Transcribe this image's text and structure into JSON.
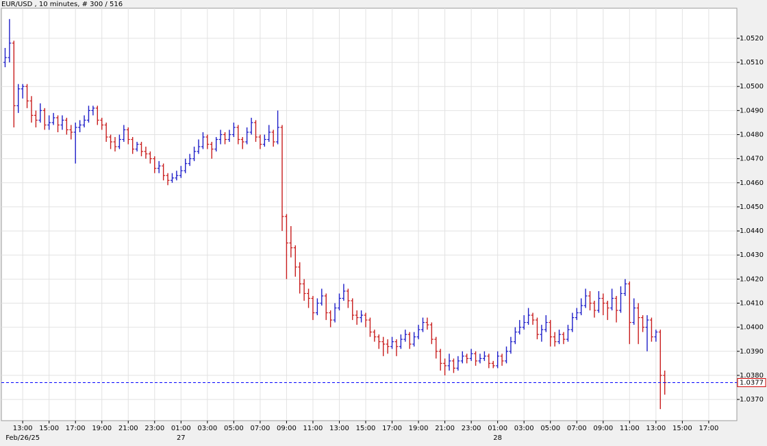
{
  "chart_data": {
    "type": "ohlc",
    "title": "EUR/USD , 10 minutes, # 300 / 516",
    "up_color": "#1c1cc8",
    "down_color": "#c81c1c",
    "grid": true,
    "current_price": 1.0377,
    "current_price_color": "#0000ff",
    "xlim": [
      683,
      4028
    ],
    "ylim": [
      1.03612,
      1.05325
    ],
    "yticks": [
      {
        "value": 1.037,
        "label": "1.0370"
      },
      {
        "value": 1.038,
        "label": "1.0380"
      },
      {
        "value": 1.039,
        "label": "1.0390"
      },
      {
        "value": 1.04,
        "label": "1.0400"
      },
      {
        "value": 1.041,
        "label": "1.0410"
      },
      {
        "value": 1.042,
        "label": "1.0420"
      },
      {
        "value": 1.043,
        "label": "1.0430"
      },
      {
        "value": 1.044,
        "label": "1.0440"
      },
      {
        "value": 1.045,
        "label": "1.0450"
      },
      {
        "value": 1.046,
        "label": "1.0460"
      },
      {
        "value": 1.047,
        "label": "1.0470"
      },
      {
        "value": 1.048,
        "label": "1.0480"
      },
      {
        "value": 1.049,
        "label": "1.0490"
      },
      {
        "value": 1.05,
        "label": "1.0500"
      },
      {
        "value": 1.051,
        "label": "1.0510"
      },
      {
        "value": 1.052,
        "label": "1.0520"
      }
    ],
    "xticks": [
      {
        "value": 780,
        "label": "13:00"
      },
      {
        "value": 900,
        "label": "15:00"
      },
      {
        "value": 1020,
        "label": "17:00"
      },
      {
        "value": 1140,
        "label": "19:00"
      },
      {
        "value": 1260,
        "label": "21:00"
      },
      {
        "value": 1380,
        "label": "23:00"
      },
      {
        "value": 1500,
        "label": "01:00"
      },
      {
        "value": 1620,
        "label": "03:00"
      },
      {
        "value": 1740,
        "label": "05:00"
      },
      {
        "value": 1860,
        "label": "07:00"
      },
      {
        "value": 1980,
        "label": "09:00"
      },
      {
        "value": 2100,
        "label": "11:00"
      },
      {
        "value": 2220,
        "label": "13:00"
      },
      {
        "value": 2340,
        "label": "15:00"
      },
      {
        "value": 2460,
        "label": "17:00"
      },
      {
        "value": 2580,
        "label": "19:00"
      },
      {
        "value": 2700,
        "label": "21:00"
      },
      {
        "value": 2820,
        "label": "23:00"
      },
      {
        "value": 2940,
        "label": "01:00"
      },
      {
        "value": 3060,
        "label": "03:00"
      },
      {
        "value": 3180,
        "label": "05:00"
      },
      {
        "value": 3300,
        "label": "07:00"
      },
      {
        "value": 3420,
        "label": "09:00"
      },
      {
        "value": 3540,
        "label": "11:00"
      },
      {
        "value": 3660,
        "label": "13:00"
      },
      {
        "value": 3780,
        "label": "15:00"
      },
      {
        "value": 3900,
        "label": "17:00"
      }
    ],
    "date_labels": [
      {
        "value": 780,
        "label": "Feb/26/25"
      },
      {
        "value": 1500,
        "label": "27"
      },
      {
        "value": 2940,
        "label": "28"
      }
    ],
    "x": [
      700,
      720,
      740,
      760,
      780,
      800,
      820,
      840,
      860,
      880,
      900,
      920,
      940,
      960,
      980,
      1000,
      1020,
      1040,
      1060,
      1080,
      1100,
      1120,
      1140,
      1160,
      1180,
      1200,
      1220,
      1240,
      1260,
      1280,
      1300,
      1320,
      1340,
      1360,
      1380,
      1400,
      1420,
      1440,
      1460,
      1480,
      1500,
      1520,
      1540,
      1560,
      1580,
      1600,
      1620,
      1640,
      1660,
      1680,
      1700,
      1720,
      1740,
      1760,
      1780,
      1800,
      1820,
      1840,
      1860,
      1880,
      1900,
      1920,
      1940,
      1960,
      1980,
      2000,
      2020,
      2040,
      2060,
      2080,
      2100,
      2120,
      2140,
      2160,
      2180,
      2200,
      2220,
      2240,
      2260,
      2280,
      2300,
      2320,
      2340,
      2360,
      2380,
      2400,
      2420,
      2440,
      2460,
      2480,
      2500,
      2520,
      2540,
      2560,
      2580,
      2600,
      2620,
      2640,
      2660,
      2680,
      2700,
      2720,
      2740,
      2760,
      2780,
      2800,
      2820,
      2840,
      2860,
      2880,
      2900,
      2920,
      2940,
      2960,
      2980,
      3000,
      3020,
      3040,
      3060,
      3080,
      3100,
      3120,
      3140,
      3160,
      3180,
      3200,
      3220,
      3240,
      3260,
      3280,
      3300,
      3320,
      3340,
      3360,
      3380,
      3400,
      3420,
      3440,
      3460,
      3480,
      3500,
      3520,
      3540,
      3560,
      3580,
      3600,
      3620,
      3640,
      3660,
      3680,
      3700
    ],
    "ohlc": [
      [
        1.051,
        1.0516,
        1.0508,
        1.0512
      ],
      [
        1.0512,
        1.0528,
        1.051,
        1.0518
      ],
      [
        1.0518,
        1.0519,
        1.0483,
        1.0492
      ],
      [
        1.0492,
        1.0501,
        1.0489,
        1.0499
      ],
      [
        1.0499,
        1.0501,
        1.0495,
        1.05
      ],
      [
        1.05,
        1.0501,
        1.0491,
        1.0494
      ],
      [
        1.0494,
        1.0496,
        1.0485,
        1.0488
      ],
      [
        1.0488,
        1.049,
        1.0483,
        1.0486
      ],
      [
        1.0486,
        1.0493,
        1.0485,
        1.049
      ],
      [
        1.049,
        1.0491,
        1.0482,
        1.0484
      ],
      [
        1.0484,
        1.0488,
        1.0482,
        1.0485
      ],
      [
        1.0485,
        1.0489,
        1.0484,
        1.0487
      ],
      [
        1.0487,
        1.0488,
        1.0481,
        1.0484
      ],
      [
        1.0484,
        1.0488,
        1.0482,
        1.0486
      ],
      [
        1.0486,
        1.0487,
        1.048,
        1.0482
      ],
      [
        1.0482,
        1.0484,
        1.0478,
        1.0481
      ],
      [
        1.0481,
        1.0485,
        1.0468,
        1.0483
      ],
      [
        1.0483,
        1.0486,
        1.0481,
        1.0484
      ],
      [
        1.0484,
        1.0488,
        1.0483,
        1.0486
      ],
      [
        1.0486,
        1.0492,
        1.0485,
        1.049
      ],
      [
        1.049,
        1.0492,
        1.0488,
        1.0491
      ],
      [
        1.0491,
        1.0492,
        1.0484,
        1.0486
      ],
      [
        1.0486,
        1.0487,
        1.0482,
        1.0484
      ],
      [
        1.0484,
        1.0485,
        1.0477,
        1.0479
      ],
      [
        1.0479,
        1.048,
        1.0474,
        1.0477
      ],
      [
        1.0477,
        1.0479,
        1.0473,
        1.0475
      ],
      [
        1.0475,
        1.048,
        1.0474,
        1.0478
      ],
      [
        1.0478,
        1.0484,
        1.0477,
        1.0482
      ],
      [
        1.0482,
        1.0483,
        1.0476,
        1.0478
      ],
      [
        1.0478,
        1.0479,
        1.0472,
        1.0474
      ],
      [
        1.0474,
        1.0477,
        1.0473,
        1.0476
      ],
      [
        1.0476,
        1.0477,
        1.0471,
        1.0473
      ],
      [
        1.0473,
        1.0475,
        1.047,
        1.0472
      ],
      [
        1.0472,
        1.0473,
        1.0468,
        1.047
      ],
      [
        1.047,
        1.0471,
        1.0464,
        1.0466
      ],
      [
        1.0466,
        1.0469,
        1.0464,
        1.0467
      ],
      [
        1.0467,
        1.0468,
        1.0461,
        1.0463
      ],
      [
        1.0463,
        1.0464,
        1.0459,
        1.0461
      ],
      [
        1.0461,
        1.0464,
        1.046,
        1.0462
      ],
      [
        1.0462,
        1.0465,
        1.0461,
        1.0463
      ],
      [
        1.0463,
        1.0467,
        1.0462,
        1.0465
      ],
      [
        1.0465,
        1.047,
        1.0464,
        1.0468
      ],
      [
        1.0468,
        1.0472,
        1.0467,
        1.047
      ],
      [
        1.047,
        1.0475,
        1.0469,
        1.0473
      ],
      [
        1.0473,
        1.0478,
        1.0472,
        1.0475
      ],
      [
        1.0475,
        1.0481,
        1.0474,
        1.0479
      ],
      [
        1.0479,
        1.048,
        1.0474,
        1.0476
      ],
      [
        1.0476,
        1.0477,
        1.047,
        1.0474
      ],
      [
        1.0474,
        1.0479,
        1.0473,
        1.0478
      ],
      [
        1.0478,
        1.0482,
        1.0476,
        1.048
      ],
      [
        1.048,
        1.0481,
        1.0476,
        1.0478
      ],
      [
        1.0478,
        1.0482,
        1.0477,
        1.048
      ],
      [
        1.048,
        1.0485,
        1.0479,
        1.0483
      ],
      [
        1.0483,
        1.0484,
        1.0476,
        1.0478
      ],
      [
        1.0478,
        1.0479,
        1.0474,
        1.0477
      ],
      [
        1.0477,
        1.0483,
        1.0476,
        1.0481
      ],
      [
        1.0481,
        1.0487,
        1.048,
        1.0485
      ],
      [
        1.0485,
        1.0486,
        1.0477,
        1.0479
      ],
      [
        1.0479,
        1.048,
        1.0474,
        1.0476
      ],
      [
        1.0476,
        1.048,
        1.0475,
        1.0478
      ],
      [
        1.0478,
        1.0484,
        1.0477,
        1.0481
      ],
      [
        1.0481,
        1.0482,
        1.0475,
        1.0477
      ],
      [
        1.0477,
        1.049,
        1.0476,
        1.0483
      ],
      [
        1.0483,
        1.0484,
        1.044,
        1.0446
      ],
      [
        1.0446,
        1.0447,
        1.042,
        1.0435
      ],
      [
        1.0435,
        1.0442,
        1.0429,
        1.0433
      ],
      [
        1.0433,
        1.0434,
        1.0421,
        1.0425
      ],
      [
        1.0425,
        1.0427,
        1.0414,
        1.0418
      ],
      [
        1.0418,
        1.042,
        1.0411,
        1.0414
      ],
      [
        1.0414,
        1.0416,
        1.0408,
        1.0412
      ],
      [
        1.0412,
        1.0413,
        1.0403,
        1.0406
      ],
      [
        1.0406,
        1.0412,
        1.0405,
        1.041
      ],
      [
        1.041,
        1.0416,
        1.0409,
        1.0413
      ],
      [
        1.0413,
        1.0414,
        1.0403,
        1.0406
      ],
      [
        1.0406,
        1.0407,
        1.04,
        1.0403
      ],
      [
        1.0403,
        1.041,
        1.0402,
        1.0408
      ],
      [
        1.0408,
        1.0414,
        1.0407,
        1.0412
      ],
      [
        1.0412,
        1.0418,
        1.0411,
        1.0415
      ],
      [
        1.0415,
        1.0416,
        1.0408,
        1.0411
      ],
      [
        1.0411,
        1.0412,
        1.0403,
        1.0405
      ],
      [
        1.0405,
        1.0407,
        1.0401,
        1.0404
      ],
      [
        1.0404,
        1.0407,
        1.0402,
        1.0405
      ],
      [
        1.0405,
        1.0406,
        1.04,
        1.0403
      ],
      [
        1.0403,
        1.0404,
        1.0396,
        1.0398
      ],
      [
        1.0398,
        1.0399,
        1.0394,
        1.0396
      ],
      [
        1.0396,
        1.0397,
        1.0391,
        1.0394
      ],
      [
        1.0394,
        1.0396,
        1.0388,
        1.0393
      ],
      [
        1.0393,
        1.0395,
        1.0389,
        1.0392
      ],
      [
        1.0392,
        1.0396,
        1.0391,
        1.0394
      ],
      [
        1.0394,
        1.0395,
        1.0388,
        1.0392
      ],
      [
        1.0392,
        1.0397,
        1.0391,
        1.0395
      ],
      [
        1.0395,
        1.0399,
        1.0394,
        1.0397
      ],
      [
        1.0397,
        1.0398,
        1.0391,
        1.0393
      ],
      [
        1.0393,
        1.0398,
        1.0392,
        1.0396
      ],
      [
        1.0396,
        1.0401,
        1.0395,
        1.0399
      ],
      [
        1.0399,
        1.0404,
        1.0398,
        1.0402
      ],
      [
        1.0402,
        1.0404,
        1.0399,
        1.0401
      ],
      [
        1.0401,
        1.0402,
        1.0393,
        1.0395
      ],
      [
        1.0395,
        1.0396,
        1.0387,
        1.039
      ],
      [
        1.039,
        1.0391,
        1.0382,
        1.0385
      ],
      [
        1.0385,
        1.0387,
        1.038,
        1.0384
      ],
      [
        1.0384,
        1.0389,
        1.0382,
        1.0386
      ],
      [
        1.0386,
        1.0387,
        1.0381,
        1.0383
      ],
      [
        1.0383,
        1.0388,
        1.0382,
        1.0386
      ],
      [
        1.0386,
        1.039,
        1.0385,
        1.0388
      ],
      [
        1.0388,
        1.0389,
        1.0385,
        1.0387
      ],
      [
        1.0387,
        1.0391,
        1.0386,
        1.0389
      ],
      [
        1.0389,
        1.039,
        1.0384,
        1.0386
      ],
      [
        1.0386,
        1.0389,
        1.0385,
        1.0387
      ],
      [
        1.0387,
        1.039,
        1.0386,
        1.0388
      ],
      [
        1.0388,
        1.0389,
        1.0383,
        1.0385
      ],
      [
        1.0385,
        1.0386,
        1.0383,
        1.0384
      ],
      [
        1.0384,
        1.039,
        1.0383,
        1.0388
      ],
      [
        1.0388,
        1.0389,
        1.0384,
        1.0386
      ],
      [
        1.0386,
        1.0392,
        1.0385,
        1.039
      ],
      [
        1.039,
        1.0396,
        1.0389,
        1.0394
      ],
      [
        1.0394,
        1.04,
        1.0393,
        1.0398
      ],
      [
        1.0398,
        1.0403,
        1.0397,
        1.04
      ],
      [
        1.04,
        1.0405,
        1.0399,
        1.0402
      ],
      [
        1.0402,
        1.0408,
        1.0401,
        1.0405
      ],
      [
        1.0405,
        1.0406,
        1.0401,
        1.0403
      ],
      [
        1.0403,
        1.0404,
        1.0395,
        1.0397
      ],
      [
        1.0397,
        1.0401,
        1.0394,
        1.0399
      ],
      [
        1.0399,
        1.0405,
        1.0398,
        1.0402
      ],
      [
        1.0402,
        1.0403,
        1.0392,
        1.0396
      ],
      [
        1.0396,
        1.0398,
        1.0392,
        1.0394
      ],
      [
        1.0394,
        1.0399,
        1.0393,
        1.0397
      ],
      [
        1.0397,
        1.0398,
        1.0393,
        1.0395
      ],
      [
        1.0395,
        1.0401,
        1.0394,
        1.0399
      ],
      [
        1.0399,
        1.0406,
        1.0398,
        1.0404
      ],
      [
        1.0404,
        1.0408,
        1.0403,
        1.0406
      ],
      [
        1.0406,
        1.0412,
        1.0405,
        1.0409
      ],
      [
        1.0409,
        1.0416,
        1.0408,
        1.0413
      ],
      [
        1.0413,
        1.0415,
        1.0407,
        1.041
      ],
      [
        1.041,
        1.0411,
        1.0404,
        1.0407
      ],
      [
        1.0407,
        1.0415,
        1.0406,
        1.0412
      ],
      [
        1.0412,
        1.0414,
        1.0405,
        1.041
      ],
      [
        1.041,
        1.0411,
        1.0403,
        1.0408
      ],
      [
        1.0408,
        1.0416,
        1.0407,
        1.0412
      ],
      [
        1.0412,
        1.0413,
        1.0402,
        1.0407
      ],
      [
        1.0407,
        1.0417,
        1.0406,
        1.0414
      ],
      [
        1.0414,
        1.042,
        1.0413,
        1.0418
      ],
      [
        1.0418,
        1.0419,
        1.0393,
        1.0402
      ],
      [
        1.0402,
        1.0412,
        1.0401,
        1.0408
      ],
      [
        1.0408,
        1.041,
        1.0393,
        1.0404
      ],
      [
        1.0404,
        1.0405,
        1.0398,
        1.04
      ],
      [
        1.04,
        1.0405,
        1.039,
        1.0403
      ],
      [
        1.0403,
        1.0404,
        1.0394,
        1.0396
      ],
      [
        1.0396,
        1.0399,
        1.0394,
        1.0398
      ],
      [
        1.0398,
        1.0399,
        1.0366,
        1.038
      ],
      [
        1.038,
        1.0382,
        1.0372,
        1.0377
      ]
    ]
  }
}
